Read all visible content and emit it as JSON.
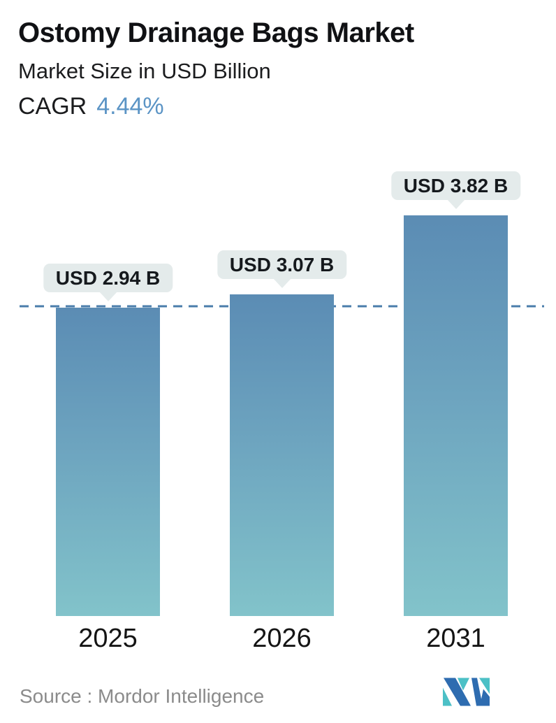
{
  "header": {
    "title": "Ostomy Drainage Bags Market",
    "subtitle": "Market Size in USD Billion",
    "cagr_label": "CAGR",
    "cagr_value": "4.44%"
  },
  "chart_data": {
    "type": "bar",
    "title": "Ostomy Drainage Bags Market",
    "subtitle": "Market Size in USD Billion",
    "unit": "USD Billion",
    "cagr_percent": 4.44,
    "categories": [
      "2025",
      "2026",
      "2031"
    ],
    "values": [
      2.94,
      3.07,
      3.82
    ],
    "value_labels": [
      "USD 2.94 B",
      "USD 3.07 B",
      "USD 3.82 B"
    ],
    "ylim": [
      0,
      4.2
    ],
    "grid": false,
    "legend": false,
    "reference_line": {
      "value": 2.94,
      "style": "dashed",
      "color": "#4a7dab"
    },
    "bar_gradient": {
      "top": "#5b8cb4",
      "bottom": "#82c3ca"
    },
    "label_pill_bg": "#e4ebeb"
  },
  "footer": {
    "source_text": "Source :  Mordor Intelligence",
    "logo_name": "mordor-intelligence-logo",
    "logo_colors": {
      "blue": "#2e6cb0",
      "teal": "#4cc0c6"
    }
  },
  "colors": {
    "cagr_value_text": "#5b94c5",
    "primary_text": "#141414",
    "source_text": "#8b8b8b"
  }
}
